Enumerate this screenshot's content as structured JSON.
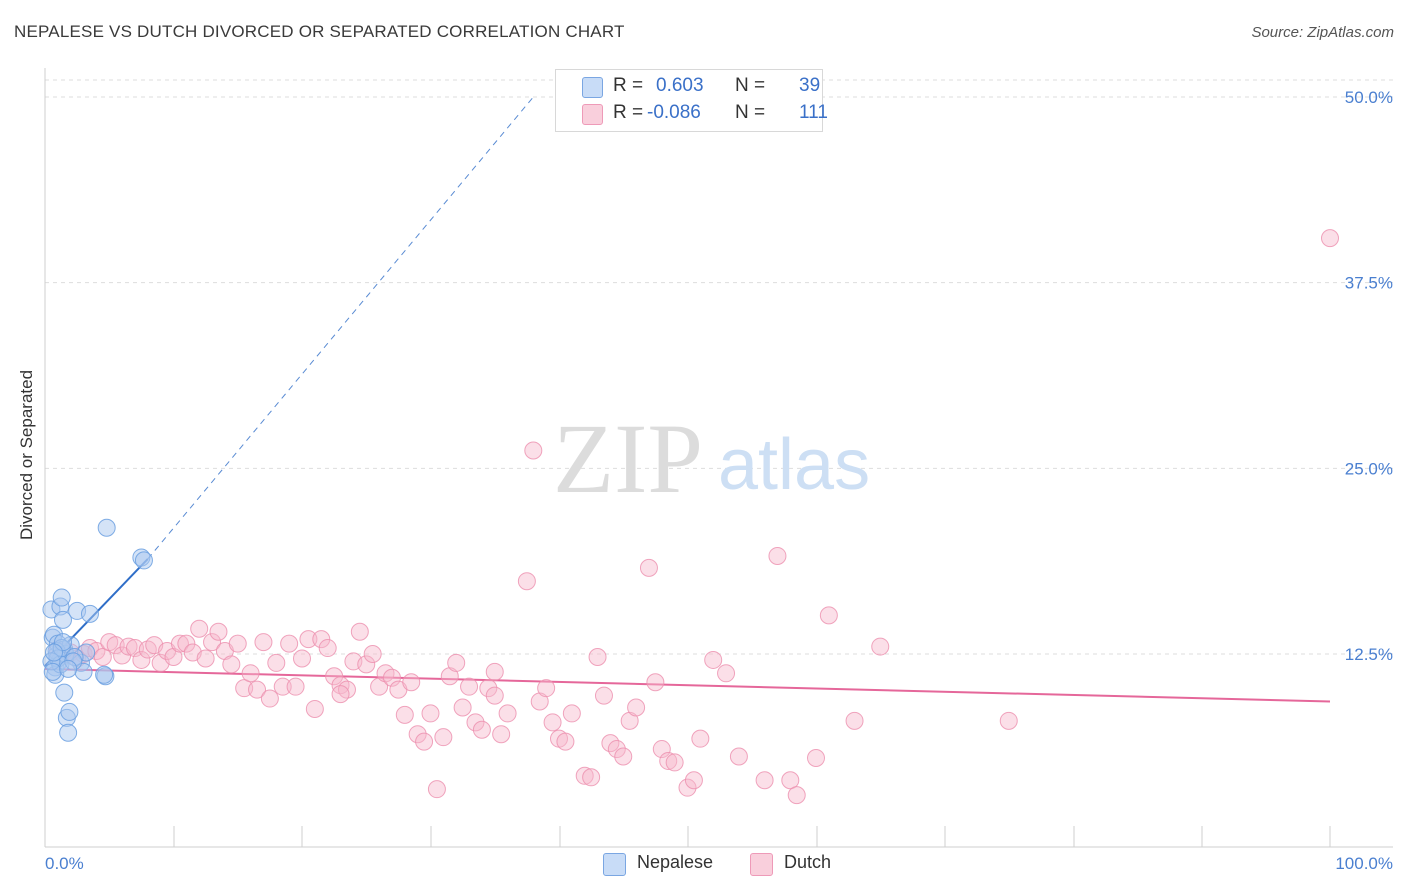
{
  "title": "NEPALESE VS DUTCH DIVORCED OR SEPARATED CORRELATION CHART",
  "source": "Source: ZipAtlas.com",
  "watermark": {
    "zip": "ZIP",
    "atlas": "atlas"
  },
  "legend": {
    "rows": [
      {
        "r_label": "R =",
        "r_value": "0.603",
        "n_label": "N =",
        "n_value": "39"
      },
      {
        "r_label": "R =",
        "r_value": "-0.086",
        "n_label": "N =",
        "n_value": "111"
      }
    ]
  },
  "bottom_legend": {
    "series1": "Nepalese",
    "series2": "Dutch"
  },
  "colors": {
    "nepalese_fill": "#aac8f0",
    "nepalese_stroke": "#6a9fe0",
    "nepalese_line": "#2f6ec8",
    "dutch_fill": "#f6b8cc",
    "dutch_stroke": "#ec8fae",
    "dutch_line": "#e5679a",
    "tick_text": "#4a7fd0",
    "grid": "#dddddd"
  },
  "chart_data": {
    "type": "scatter",
    "title": "NEPALESE VS DUTCH DIVORCED OR SEPARATED CORRELATION CHART",
    "xlabel": "",
    "ylabel": "Divorced or Separated",
    "xlim": [
      0,
      100
    ],
    "ylim": [
      0,
      52
    ],
    "y_ticks": [
      12.5,
      25.0,
      37.5,
      50.0
    ],
    "y_tick_labels": [
      "12.5%",
      "25.0%",
      "37.5%",
      "50.0%"
    ],
    "x_tick_labels": [
      "0.0%",
      "100.0%"
    ],
    "series": [
      {
        "name": "Nepalese",
        "R": 0.603,
        "N": 39,
        "trend": {
          "x0": 0.0,
          "y0": 11.7,
          "x1": 8.0,
          "y1": 18.9,
          "dashed_to_x": 38.0,
          "dashed_to_y": 50.0
        },
        "points": [
          [
            0.5,
            15.5
          ],
          [
            0.6,
            13.6
          ],
          [
            0.7,
            13.8
          ],
          [
            0.8,
            11.6
          ],
          [
            0.9,
            12.4
          ],
          [
            1.0,
            13.2
          ],
          [
            1.1,
            12.0
          ],
          [
            1.2,
            15.7
          ],
          [
            1.3,
            16.3
          ],
          [
            1.4,
            14.8
          ],
          [
            1.5,
            12.8
          ],
          [
            1.6,
            12.5
          ],
          [
            1.7,
            8.2
          ],
          [
            1.8,
            7.2
          ],
          [
            1.9,
            8.6
          ],
          [
            2.0,
            13.1
          ],
          [
            1.5,
            9.9
          ],
          [
            0.8,
            11.1
          ],
          [
            0.9,
            12.7
          ],
          [
            1.0,
            12.2
          ],
          [
            1.2,
            11.8
          ],
          [
            1.3,
            12.9
          ],
          [
            1.4,
            13.3
          ],
          [
            0.5,
            12.0
          ],
          [
            0.6,
            11.3
          ],
          [
            0.7,
            12.6
          ],
          [
            2.5,
            15.4
          ],
          [
            2.8,
            11.9
          ],
          [
            3.0,
            11.3
          ],
          [
            3.2,
            12.6
          ],
          [
            2.3,
            12.3
          ],
          [
            3.5,
            15.2
          ],
          [
            4.7,
            11.0
          ],
          [
            4.6,
            11.1
          ],
          [
            4.8,
            21.0
          ],
          [
            7.5,
            19.0
          ],
          [
            7.7,
            18.8
          ],
          [
            2.2,
            12.0
          ],
          [
            1.8,
            11.5
          ]
        ]
      },
      {
        "name": "Dutch",
        "R": -0.086,
        "N": 111,
        "trend": {
          "x0": 0.0,
          "y0": 11.5,
          "x1": 100.0,
          "y1": 9.3
        },
        "points": [
          [
            1.0,
            12.8
          ],
          [
            1.5,
            12.4
          ],
          [
            2.0,
            12.6
          ],
          [
            2.5,
            12.2
          ],
          [
            3.0,
            12.5
          ],
          [
            3.5,
            12.9
          ],
          [
            4.0,
            12.7
          ],
          [
            4.5,
            12.3
          ],
          [
            5.0,
            13.3
          ],
          [
            5.5,
            13.1
          ],
          [
            6.0,
            12.4
          ],
          [
            6.5,
            13.0
          ],
          [
            7.0,
            12.9
          ],
          [
            7.5,
            12.1
          ],
          [
            8.0,
            12.8
          ],
          [
            8.5,
            13.1
          ],
          [
            9.0,
            11.9
          ],
          [
            9.5,
            12.7
          ],
          [
            10.0,
            12.3
          ],
          [
            10.5,
            13.2
          ],
          [
            11.0,
            13.2
          ],
          [
            11.5,
            12.6
          ],
          [
            12.0,
            14.2
          ],
          [
            12.5,
            12.2
          ],
          [
            13.0,
            13.3
          ],
          [
            13.5,
            14.0
          ],
          [
            14.0,
            12.7
          ],
          [
            14.5,
            11.8
          ],
          [
            15.0,
            13.2
          ],
          [
            15.5,
            10.2
          ],
          [
            16.0,
            11.2
          ],
          [
            16.5,
            10.1
          ],
          [
            17.0,
            13.3
          ],
          [
            17.5,
            9.5
          ],
          [
            18.0,
            11.9
          ],
          [
            18.5,
            10.3
          ],
          [
            19.0,
            13.2
          ],
          [
            19.5,
            10.3
          ],
          [
            20.0,
            12.2
          ],
          [
            20.5,
            13.5
          ],
          [
            21.0,
            8.8
          ],
          [
            21.5,
            13.5
          ],
          [
            22.0,
            12.9
          ],
          [
            22.5,
            11.0
          ],
          [
            23.0,
            10.4
          ],
          [
            23.5,
            10.1
          ],
          [
            24.0,
            12.0
          ],
          [
            24.5,
            14.0
          ],
          [
            25.0,
            11.8
          ],
          [
            25.5,
            12.5
          ],
          [
            26.0,
            10.3
          ],
          [
            26.5,
            11.2
          ],
          [
            27.0,
            10.9
          ],
          [
            27.5,
            10.1
          ],
          [
            28.0,
            8.4
          ],
          [
            28.5,
            10.6
          ],
          [
            29.0,
            7.1
          ],
          [
            29.5,
            6.6
          ],
          [
            30.0,
            8.5
          ],
          [
            30.5,
            3.4
          ],
          [
            31.0,
            6.9
          ],
          [
            31.5,
            11.0
          ],
          [
            32.0,
            11.9
          ],
          [
            32.5,
            8.9
          ],
          [
            33.0,
            10.3
          ],
          [
            33.5,
            7.9
          ],
          [
            34.0,
            7.4
          ],
          [
            34.5,
            10.2
          ],
          [
            35.0,
            9.7
          ],
          [
            35.5,
            7.1
          ],
          [
            36.0,
            8.5
          ],
          [
            37.5,
            17.4
          ],
          [
            38.0,
            26.2
          ],
          [
            38.5,
            9.3
          ],
          [
            39.0,
            10.2
          ],
          [
            39.5,
            7.9
          ],
          [
            40.0,
            6.8
          ],
          [
            40.5,
            6.6
          ],
          [
            41.0,
            8.5
          ],
          [
            42.0,
            4.3
          ],
          [
            42.5,
            4.2
          ],
          [
            43.0,
            12.3
          ],
          [
            43.5,
            9.7
          ],
          [
            44.0,
            6.5
          ],
          [
            44.5,
            6.1
          ],
          [
            45.0,
            5.6
          ],
          [
            45.5,
            8.0
          ],
          [
            46.0,
            8.9
          ],
          [
            47.0,
            18.3
          ],
          [
            47.5,
            10.6
          ],
          [
            48.0,
            6.1
          ],
          [
            48.5,
            5.3
          ],
          [
            49.0,
            5.2
          ],
          [
            50.0,
            3.5
          ],
          [
            50.5,
            4.0
          ],
          [
            51.0,
            6.8
          ],
          [
            52.0,
            12.1
          ],
          [
            53.0,
            11.2
          ],
          [
            54.0,
            5.6
          ],
          [
            56.0,
            4.0
          ],
          [
            57.0,
            19.1
          ],
          [
            58.0,
            4.0
          ],
          [
            58.5,
            3.0
          ],
          [
            60.0,
            5.5
          ],
          [
            61.0,
            15.1
          ],
          [
            63.0,
            8.0
          ],
          [
            65.0,
            13.0
          ],
          [
            75.0,
            8.0
          ],
          [
            100.0,
            40.5
          ],
          [
            35.0,
            11.3
          ],
          [
            23.0,
            9.8
          ]
        ]
      }
    ]
  }
}
